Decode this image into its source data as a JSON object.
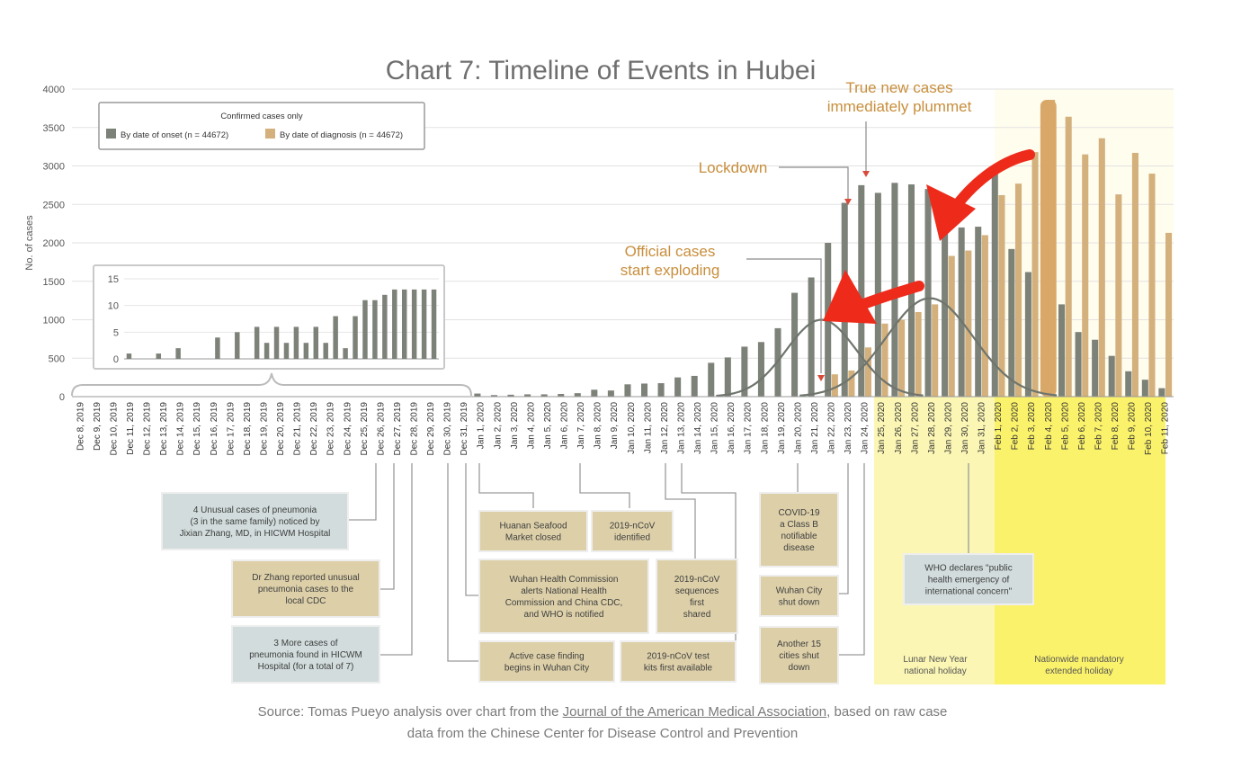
{
  "chart_data": {
    "type": "bar",
    "title": "Chart 7: Timeline of Events in Hubei",
    "ylabel": "No. of cases",
    "ylim": [
      0,
      4000
    ],
    "yticks": [
      0,
      500,
      1000,
      1500,
      2000,
      2500,
      3000,
      3500,
      4000
    ],
    "grid": true,
    "legend_position": "top-left",
    "legend_title": "Confirmed cases only",
    "categories": [
      "Dec 8, 2019",
      "Dec 9, 2019",
      "Dec 10, 2019",
      "Dec 11, 2019",
      "Dec 12, 2019",
      "Dec 13, 2019",
      "Dec 14, 2019",
      "Dec 15, 2019",
      "Dec 16, 2019",
      "Dec 17, 2019",
      "Dec 18, 2019",
      "Dec 19, 2019",
      "Dec 20, 2019",
      "Dec 21, 2019",
      "Dec 22, 2019",
      "Dec 23, 2019",
      "Dec 24, 2019",
      "Dec 25, 2019",
      "Dec 26, 2019",
      "Dec 27, 2019",
      "Dec 28, 2019",
      "Dec 29, 2019",
      "Dec 30, 2019",
      "Dec 31, 2019",
      "Jan 1, 2020",
      "Jan 2, 2020",
      "Jan 3, 2020",
      "Jan 4, 2020",
      "Jan 5, 2020",
      "Jan 6, 2020",
      "Jan 7, 2020",
      "Jan 8, 2020",
      "Jan 9, 2020",
      "Jan 10, 2020",
      "Jan 11, 2020",
      "Jan 12, 2020",
      "Jan 13, 2020",
      "Jan 14, 2020",
      "Jan 15, 2020",
      "Jan 16, 2020",
      "Jan 17, 2020",
      "Jan 18, 2020",
      "Jan 19, 2020",
      "Jan 20, 2020",
      "Jan 21, 2020",
      "Jan 22, 2020",
      "Jan 23, 2020",
      "Jan 24, 2020",
      "Jan 25, 2020",
      "Jan 26, 2020",
      "Jan 27, 2020",
      "Jan 28, 2020",
      "Jan 29, 2020",
      "Jan 30, 2020",
      "Jan 31, 2020",
      "Feb 1, 2020",
      "Feb 2, 2020",
      "Feb 3, 2020",
      "Feb 4, 2020",
      "Feb 5, 2020",
      "Feb 6, 2020",
      "Feb 7, 2020",
      "Feb 8, 2020",
      "Feb 9, 2020",
      "Feb 10, 2020",
      "Feb 11, 2020"
    ],
    "series": [
      {
        "name": "By date of onset (n = 44672)",
        "color": "#7d8279",
        "values": [
          1,
          1,
          1,
          1,
          1,
          1,
          1,
          1,
          1,
          1,
          1,
          1,
          1,
          2,
          1,
          1,
          1,
          1,
          2,
          2,
          2,
          2,
          2,
          2,
          40,
          20,
          25,
          30,
          30,
          35,
          45,
          90,
          80,
          160,
          170,
          175,
          250,
          270,
          440,
          510,
          650,
          710,
          890,
          1350,
          1550,
          2000,
          2520,
          2750,
          2650,
          2780,
          2760,
          2700,
          2150,
          2200,
          2210,
          3000,
          1920,
          1620,
          null,
          1200,
          840,
          740,
          530,
          330,
          220,
          110
        ]
      },
      {
        "name": "By date of diagnosis (n = 44672)",
        "color": "#d3b07c",
        "values": [
          0,
          0,
          0,
          0,
          0,
          0,
          0,
          0,
          0,
          0,
          0,
          0,
          0,
          0,
          0,
          0,
          0,
          0,
          0,
          0,
          0,
          0,
          0,
          0,
          0,
          0,
          0,
          0,
          0,
          0,
          0,
          0,
          0,
          0,
          0,
          0,
          0,
          0,
          0,
          0,
          0,
          0,
          0,
          0,
          0,
          290,
          340,
          640,
          950,
          1000,
          1100,
          1200,
          1830,
          1900,
          2100,
          2620,
          2770,
          3180,
          3860,
          3640,
          3150,
          3360,
          2630,
          3170,
          2900,
          2130
        ]
      }
    ],
    "inset": {
      "ylim": [
        0,
        15
      ],
      "yticks": [
        0,
        5,
        10,
        15
      ],
      "values": [
        1,
        0,
        0,
        1,
        0,
        2,
        0,
        0,
        0,
        4,
        0,
        5,
        0,
        6,
        3,
        6,
        3,
        6,
        3,
        6,
        3,
        8,
        2,
        8,
        11,
        11,
        12,
        13,
        13,
        13,
        13,
        13
      ]
    },
    "annotations": {
      "lockdown": "Lockdown",
      "plummet": [
        "True new cases",
        "immediately plummet"
      ],
      "exploding": [
        "Official cases",
        "start exploding"
      ]
    },
    "events": [
      {
        "lines": [
          "4 Unusual cases of pneumonia",
          "(3 in the same family) noticed by",
          "Jixian Zhang, MD, in HICWM Hospital"
        ],
        "style": "blue"
      },
      {
        "lines": [
          "Dr Zhang reported unusual",
          "pneumonia cases to the",
          "local CDC"
        ],
        "style": "tan"
      },
      {
        "lines": [
          "3 More cases of",
          "pneumonia found in HICWM",
          "Hospital (for a total of 7)"
        ],
        "style": "blue"
      },
      {
        "lines": [
          "Huanan Seafood",
          "Market closed"
        ],
        "style": "tan"
      },
      {
        "lines": [
          "2019-nCoV",
          "identified"
        ],
        "style": "tan"
      },
      {
        "lines": [
          "Wuhan Health Commission",
          "alerts National Health",
          "Commission and China CDC,",
          "and WHO is notified"
        ],
        "style": "tan"
      },
      {
        "lines": [
          "2019-nCoV",
          "sequences",
          "first",
          "shared"
        ],
        "style": "tan"
      },
      {
        "lines": [
          "Active case finding",
          "begins in Wuhan City"
        ],
        "style": "tan"
      },
      {
        "lines": [
          "2019-nCoV test",
          "kits first available"
        ],
        "style": "tan"
      },
      {
        "lines": [
          "COVID-19",
          "a Class B",
          "notifiable",
          "disease"
        ],
        "style": "tan"
      },
      {
        "lines": [
          "Wuhan City",
          "shut down"
        ],
        "style": "tan"
      },
      {
        "lines": [
          "Another 15",
          "cities shut",
          "down"
        ],
        "style": "tan"
      },
      {
        "lines": [
          "WHO declares \"public",
          "health emergency of",
          "international concern\""
        ],
        "style": "blue"
      }
    ],
    "periods": [
      {
        "lines": [
          "Lunar New Year",
          "national holiday"
        ]
      },
      {
        "lines": [
          "Nationwide mandatory",
          "extended holiday"
        ]
      }
    ]
  },
  "source": {
    "prefix": "Source: Tomas Pueyo analysis over chart from the ",
    "link": "Journal of the American Medical Association",
    "suffix": ", based on raw case",
    "line2": "data from the Chinese Center for Disease Control and Prevention"
  }
}
